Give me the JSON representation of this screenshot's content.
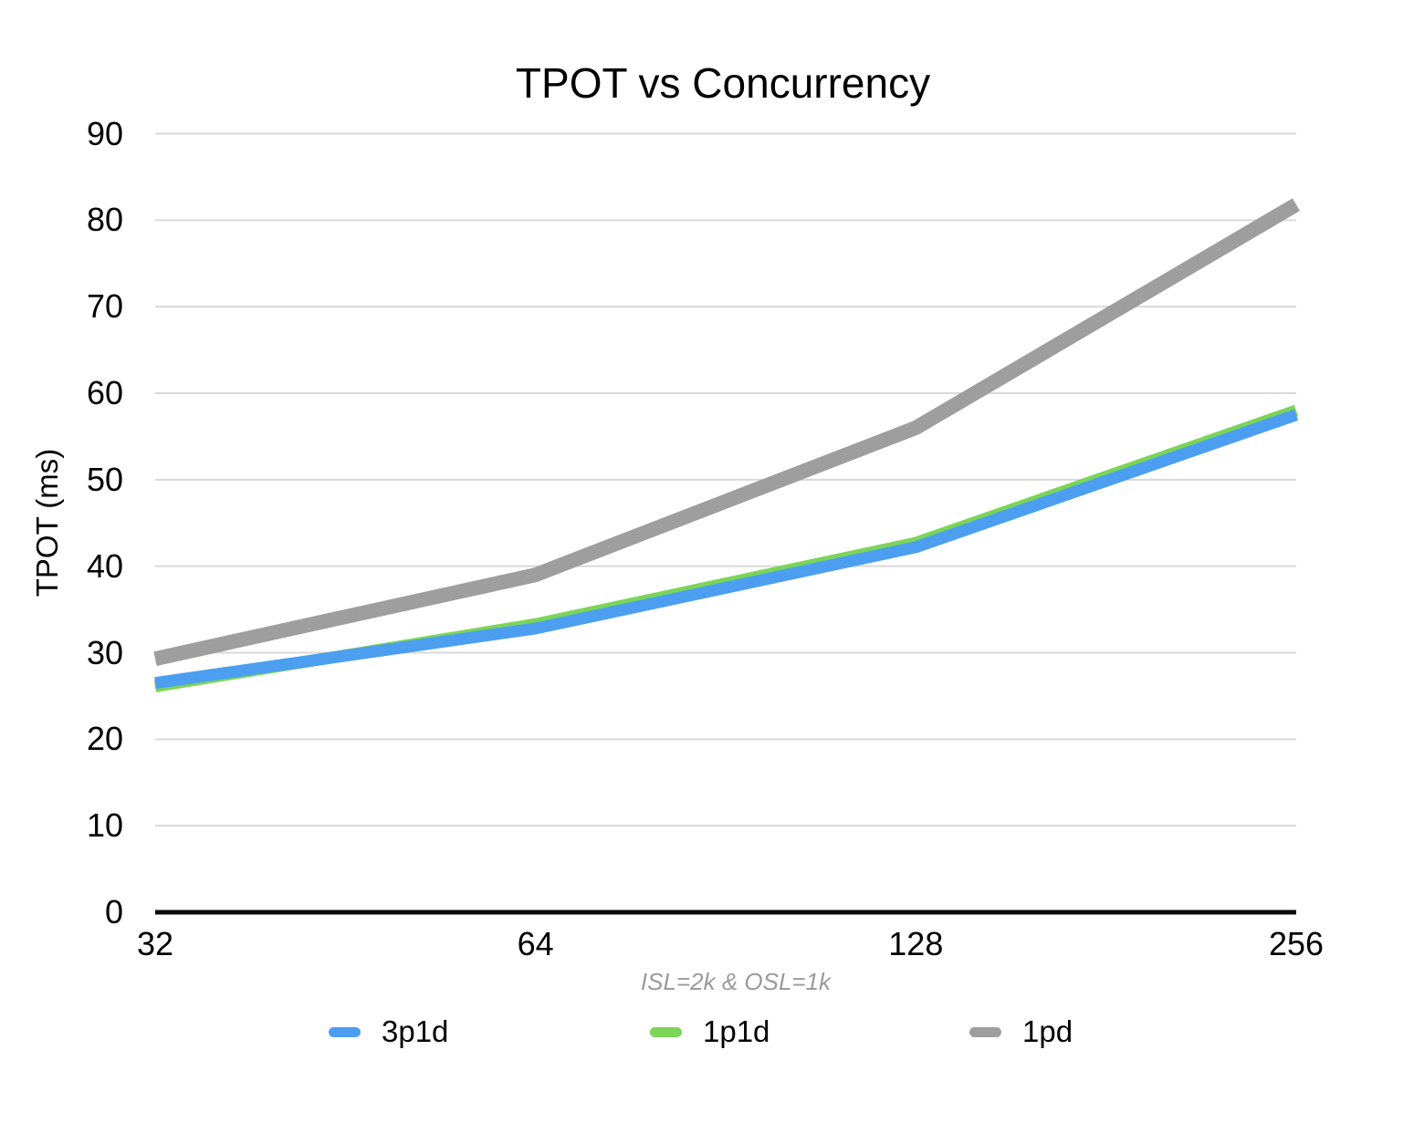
{
  "chart_data": {
    "type": "line",
    "title": "TPOT vs Concurrency",
    "ylabel": "TPOT (ms)",
    "xlabel": "",
    "x_note": "ISL=2k & OSL=1k",
    "categories": [
      "32",
      "64",
      "128",
      "256"
    ],
    "series": [
      {
        "name": "3p1d",
        "color": "#4C9FF0",
        "values": [
          26.5,
          32.8,
          42.2,
          57.5
        ]
      },
      {
        "name": "1p1d",
        "color": "#7BD556",
        "values": [
          26.1,
          33.3,
          42.7,
          58.0
        ]
      },
      {
        "name": "1pd",
        "color": "#9E9E9E",
        "values": [
          29.3,
          39.0,
          56.0,
          81.8
        ]
      }
    ],
    "ylim": [
      0,
      90
    ],
    "yticks": [
      0,
      10,
      20,
      30,
      40,
      50,
      60,
      70,
      80,
      90
    ],
    "grid": true,
    "legend_position": "bottom",
    "draw_order": [
      1,
      0,
      2
    ]
  },
  "colors": {
    "gridline": "#d9d9d9",
    "axis_line": "#0a0a0a",
    "note_text": "#9b9b9b",
    "text": "#000000"
  }
}
